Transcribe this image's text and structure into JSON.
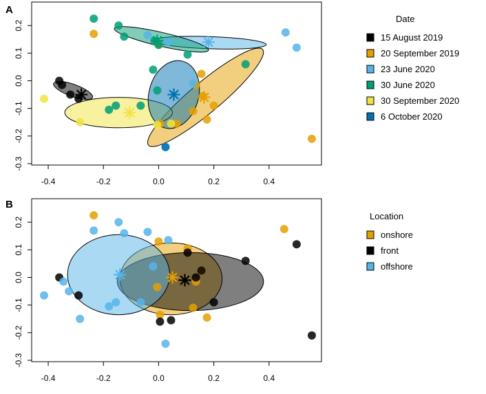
{
  "chart_data": [
    {
      "type": "scatter",
      "panel_label": "A",
      "xlim": [
        -0.46,
        0.59
      ],
      "ylim": [
        -0.305,
        0.285
      ],
      "x_ticks": [
        -0.4,
        -0.2,
        0.0,
        0.2,
        0.4
      ],
      "x_tick_labels": [
        "-0.4",
        "-0.2",
        "0.0",
        "0.2",
        "0.4"
      ],
      "y_ticks": [
        -0.3,
        -0.2,
        -0.1,
        0.0,
        0.1,
        0.2
      ],
      "y_tick_labels": [
        "-0.3",
        "-0.2",
        "-0.1",
        "0.0",
        "0.1",
        "0.2"
      ],
      "legend": {
        "title": "Date",
        "placement": "right"
      },
      "series": [
        {
          "name": "15 August 2019",
          "color": "#000000",
          "points": [
            [
              -0.36,
              0.0
            ],
            [
              -0.35,
              -0.015
            ],
            [
              -0.32,
              -0.05
            ],
            [
              -0.29,
              -0.065
            ]
          ],
          "centroid": [
            -0.28,
            -0.05
          ],
          "ellipse": {
            "center": [
              -0.31,
              -0.035
            ],
            "rx": 0.075,
            "ry": 0.022,
            "angle_deg": 20
          }
        },
        {
          "name": "20 September 2019",
          "color": "#E69F00",
          "points": [
            [
              -0.235,
              0.17
            ],
            [
              0.0,
              0.13
            ],
            [
              0.155,
              0.025
            ],
            [
              0.135,
              -0.015
            ],
            [
              0.16,
              -0.055
            ],
            [
              0.2,
              -0.09
            ],
            [
              0.175,
              -0.14
            ],
            [
              0.125,
              -0.11
            ],
            [
              0.555,
              -0.21
            ],
            [
              0.065,
              -0.155
            ],
            [
              0.005,
              -0.155
            ]
          ],
          "centroid": [
            0.165,
            -0.06
          ],
          "ellipse": {
            "center": [
              0.17,
              -0.06
            ],
            "rx": 0.27,
            "ry": 0.055,
            "angle_deg": -40
          }
        },
        {
          "name": "23 June 2020",
          "color": "#56B4E9",
          "points": [
            [
              -0.04,
              0.165
            ],
            [
              0.035,
              0.14
            ],
            [
              0.46,
              0.175
            ],
            [
              0.5,
              0.12
            ],
            [
              0.025,
              -0.24
            ],
            [
              0.125,
              -0.01
            ]
          ],
          "centroid": [
            0.18,
            0.14
          ],
          "ellipse": {
            "center": [
              0.185,
              0.138
            ],
            "rx": 0.205,
            "ry": 0.022,
            "angle_deg": 2
          }
        },
        {
          "name": "30 June 2020",
          "color": "#009E73",
          "points": [
            [
              -0.235,
              0.225
            ],
            [
              -0.145,
              0.2
            ],
            [
              -0.125,
              0.16
            ],
            [
              -0.015,
              0.145
            ],
            [
              0.0,
              0.13
            ],
            [
              0.105,
              0.095
            ],
            [
              0.315,
              0.06
            ],
            [
              -0.02,
              0.04
            ],
            [
              -0.005,
              -0.035
            ],
            [
              -0.065,
              -0.09
            ],
            [
              -0.155,
              -0.09
            ],
            [
              -0.18,
              -0.105
            ]
          ],
          "centroid": [
            -0.005,
            0.145
          ],
          "ellipse": {
            "center": [
              0.01,
              0.15
            ],
            "rx": 0.175,
            "ry": 0.025,
            "angle_deg": 13
          }
        },
        {
          "name": "30 September 2020",
          "color": "#F0E442",
          "points": [
            [
              -0.415,
              -0.065
            ],
            [
              -0.285,
              -0.15
            ],
            [
              -0.005,
              -0.16
            ],
            [
              0.045,
              -0.155
            ]
          ],
          "centroid": [
            -0.105,
            -0.115
          ],
          "ellipse": {
            "center": [
              -0.145,
              -0.115
            ],
            "rx": 0.195,
            "ry": 0.055,
            "angle_deg": 0
          }
        },
        {
          "name": "6 October 2020",
          "color": "#0072B2",
          "points": [
            [
              0.025,
              -0.24
            ]
          ],
          "centroid": [
            0.055,
            -0.05
          ],
          "ellipse": {
            "center": [
              0.055,
              -0.05
            ],
            "rx": 0.09,
            "ry": 0.125,
            "angle_deg": 15
          }
        }
      ]
    },
    {
      "type": "scatter",
      "panel_label": "B",
      "xlim": [
        -0.46,
        0.59
      ],
      "ylim": [
        -0.305,
        0.285
      ],
      "x_ticks": [
        -0.4,
        -0.2,
        0.0,
        0.2,
        0.4
      ],
      "x_tick_labels": [
        "-0.4",
        "-0.2",
        "0.0",
        "0.2",
        "0.4"
      ],
      "y_ticks": [
        -0.3,
        -0.2,
        -0.1,
        0.0,
        0.1,
        0.2
      ],
      "y_tick_labels": [
        "-0.3",
        "-0.2",
        "-0.1",
        "0.0",
        "0.1",
        "0.2"
      ],
      "legend": {
        "title": "Location",
        "placement": "right"
      },
      "series": [
        {
          "name": "onshore",
          "color": "#E69F00",
          "points": [
            [
              -0.235,
              0.225
            ],
            [
              0.0,
              0.13
            ],
            [
              0.105,
              0.105
            ],
            [
              0.155,
              0.025
            ],
            [
              0.135,
              -0.015
            ],
            [
              0.125,
              -0.11
            ],
            [
              0.175,
              -0.145
            ],
            [
              0.455,
              0.175
            ],
            [
              0.005,
              -0.135
            ],
            [
              -0.005,
              -0.035
            ]
          ],
          "centroid": [
            0.05,
            0.0
          ],
          "ellipse": {
            "center": [
              0.045,
              -0.005
            ],
            "rx": 0.185,
            "ry": 0.13,
            "angle_deg": 0
          }
        },
        {
          "name": "front",
          "color": "#000000",
          "points": [
            [
              -0.36,
              0.0
            ],
            [
              -0.29,
              -0.065
            ],
            [
              0.105,
              0.09
            ],
            [
              0.155,
              0.025
            ],
            [
              0.135,
              0.0
            ],
            [
              0.315,
              0.06
            ],
            [
              0.5,
              0.12
            ],
            [
              0.555,
              -0.21
            ],
            [
              0.005,
              -0.16
            ],
            [
              0.045,
              -0.155
            ],
            [
              0.2,
              -0.09
            ]
          ],
          "centroid": [
            0.095,
            -0.01
          ],
          "ellipse": {
            "center": [
              0.115,
              -0.015
            ],
            "rx": 0.265,
            "ry": 0.105,
            "angle_deg": 0
          }
        },
        {
          "name": "offshore",
          "color": "#56B4E9",
          "points": [
            [
              -0.235,
              0.17
            ],
            [
              -0.145,
              0.2
            ],
            [
              -0.125,
              0.16
            ],
            [
              -0.04,
              0.165
            ],
            [
              0.035,
              0.135
            ],
            [
              -0.345,
              -0.015
            ],
            [
              -0.325,
              -0.05
            ],
            [
              -0.415,
              -0.065
            ],
            [
              -0.285,
              -0.15
            ],
            [
              -0.155,
              -0.09
            ],
            [
              -0.18,
              -0.105
            ],
            [
              -0.065,
              -0.09
            ],
            [
              -0.02,
              0.04
            ],
            [
              0.025,
              -0.24
            ]
          ],
          "centroid": [
            -0.14,
            0.01
          ],
          "ellipse": {
            "center": [
              -0.145,
              0.01
            ],
            "rx": 0.185,
            "ry": 0.145,
            "angle_deg": 0
          }
        }
      ]
    }
  ]
}
